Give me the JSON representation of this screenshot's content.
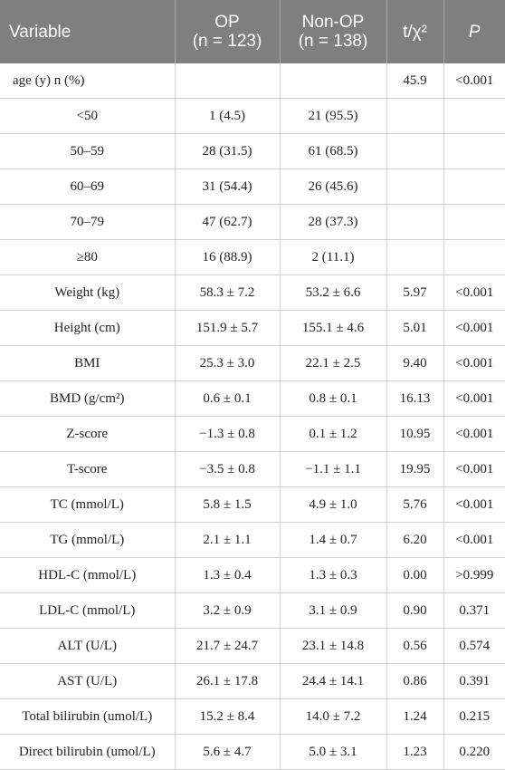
{
  "table": {
    "headers": {
      "variable": "Variable",
      "op_line1": "OP",
      "op_line2": "(n = 123)",
      "nonop_line1": "Non-OP",
      "nonop_line2": "(n = 138)",
      "stat": "t/χ²",
      "p": "P"
    },
    "rows": [
      [
        "age (y) n (%)",
        "",
        "",
        "45.9",
        "<0.001"
      ],
      [
        "<50",
        "1 (4.5)",
        "21 (95.5)",
        "",
        ""
      ],
      [
        "50–59",
        "28 (31.5)",
        "61 (68.5)",
        "",
        ""
      ],
      [
        "60–69",
        "31 (54.4)",
        "26 (45.6)",
        "",
        ""
      ],
      [
        "70–79",
        "47 (62.7)",
        "28 (37.3)",
        "",
        ""
      ],
      [
        "≥80",
        "16 (88.9)",
        "2 (11.1)",
        "",
        ""
      ],
      [
        "Weight (kg)",
        "58.3 ± 7.2",
        "53.2 ± 6.6",
        "5.97",
        "<0.001"
      ],
      [
        "Height (cm)",
        "151.9 ± 5.7",
        "155.1 ± 4.6",
        "5.01",
        "<0.001"
      ],
      [
        "BMI",
        "25.3 ± 3.0",
        "22.1 ± 2.5",
        "9.40",
        "<0.001"
      ],
      [
        "BMD (g/cm²)",
        "0.6 ± 0.1",
        "0.8 ± 0.1",
        "16.13",
        "<0.001"
      ],
      [
        "Z-score",
        "−1.3 ± 0.8",
        "0.1 ± 1.2",
        "10.95",
        "<0.001"
      ],
      [
        "T-score",
        "−3.5 ± 0.8",
        "−1.1 ± 1.1",
        "19.95",
        "<0.001"
      ],
      [
        "TC (mmol/L)",
        "5.8 ± 1.5",
        "4.9 ± 1.0",
        "5.76",
        "<0.001"
      ],
      [
        "TG (mmol/L)",
        "2.1 ± 1.1",
        "1.4 ± 0.7",
        "6.20",
        "<0.001"
      ],
      [
        "HDL-C (mmol/L)",
        "1.3 ± 0.4",
        "1.3 ± 0.3",
        "0.00",
        ">0.999"
      ],
      [
        "LDL-C (mmol/L)",
        "3.2 ± 0.9",
        "3.1 ± 0.9",
        "0.90",
        "0.371"
      ],
      [
        "ALT (U/L)",
        "21.7 ± 24.7",
        "23.1 ± 14.8",
        "0.56",
        "0.574"
      ],
      [
        "AST (U/L)",
        "26.1 ± 17.8",
        "24.4 ± 14.1",
        "0.86",
        "0.391"
      ],
      [
        "Total bilirubin (umol/L)",
        "15.2 ± 8.4",
        "14.0 ± 7.2",
        "1.24",
        "0.215"
      ],
      [
        "Direct bilirubin (umol/L)",
        "5.6 ± 4.7",
        "5.0 ± 3.1",
        "1.23",
        "0.220"
      ]
    ]
  }
}
